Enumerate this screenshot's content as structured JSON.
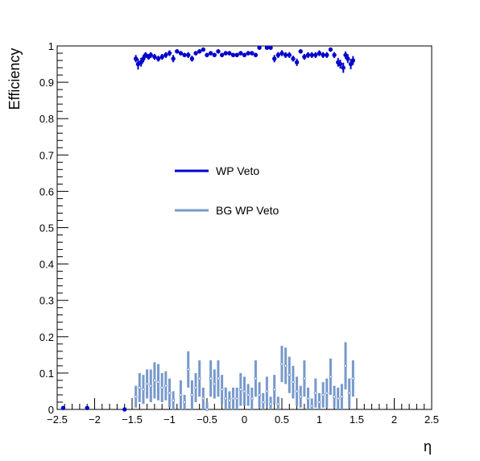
{
  "chart_data": {
    "type": "scatter",
    "xlabel": "η",
    "ylabel": "Efficiency",
    "xlim": [
      -2.5,
      2.5
    ],
    "ylim": [
      0,
      1
    ],
    "grid": false,
    "legend_position": "center",
    "x_ticks": [
      "−2.5",
      "−2",
      "−1.5",
      "−1",
      "−0.5",
      "0",
      "0.5",
      "1",
      "1.5",
      "2",
      "2.5"
    ],
    "y_ticks": [
      "0",
      "0.1",
      "0.2",
      "0.3",
      "0.4",
      "0.5",
      "0.6",
      "0.7",
      "0.8",
      "0.9",
      "1"
    ],
    "series": [
      {
        "name": "WP Veto",
        "color": "#0000cc",
        "points": [
          {
            "x": -2.42,
            "y": 0.004,
            "err": 0.0
          },
          {
            "x": -2.1,
            "y": 0.004,
            "err": 0.0
          },
          {
            "x": -1.6,
            "y": 0.0,
            "err": 0.0
          },
          {
            "x": -1.45,
            "y": 0.965,
            "err": 0.01
          },
          {
            "x": -1.42,
            "y": 0.95,
            "err": 0.015
          },
          {
            "x": -1.38,
            "y": 0.955,
            "err": 0.012
          },
          {
            "x": -1.35,
            "y": 0.965,
            "err": 0.01
          },
          {
            "x": -1.32,
            "y": 0.975,
            "err": 0.008
          },
          {
            "x": -1.28,
            "y": 0.97,
            "err": 0.008
          },
          {
            "x": -1.25,
            "y": 0.975,
            "err": 0.008
          },
          {
            "x": -1.2,
            "y": 0.97,
            "err": 0.008
          },
          {
            "x": -1.15,
            "y": 0.965,
            "err": 0.008
          },
          {
            "x": -1.1,
            "y": 0.97,
            "err": 0.008
          },
          {
            "x": -1.05,
            "y": 0.975,
            "err": 0.008
          },
          {
            "x": -1.0,
            "y": 0.98,
            "err": 0.008
          },
          {
            "x": -0.95,
            "y": 0.965,
            "err": 0.01
          },
          {
            "x": -0.9,
            "y": 0.985,
            "err": 0.006
          },
          {
            "x": -0.85,
            "y": 0.98,
            "err": 0.006
          },
          {
            "x": -0.8,
            "y": 0.975,
            "err": 0.006
          },
          {
            "x": -0.75,
            "y": 0.975,
            "err": 0.008
          },
          {
            "x": -0.7,
            "y": 0.965,
            "err": 0.008
          },
          {
            "x": -0.65,
            "y": 0.98,
            "err": 0.006
          },
          {
            "x": -0.6,
            "y": 0.985,
            "err": 0.006
          },
          {
            "x": -0.55,
            "y": 0.99,
            "err": 0.005
          },
          {
            "x": -0.5,
            "y": 0.975,
            "err": 0.006
          },
          {
            "x": -0.45,
            "y": 0.98,
            "err": 0.006
          },
          {
            "x": -0.4,
            "y": 0.975,
            "err": 0.006
          },
          {
            "x": -0.35,
            "y": 0.985,
            "err": 0.006
          },
          {
            "x": -0.3,
            "y": 0.975,
            "err": 0.006
          },
          {
            "x": -0.25,
            "y": 0.98,
            "err": 0.006
          },
          {
            "x": -0.2,
            "y": 0.98,
            "err": 0.006
          },
          {
            "x": -0.15,
            "y": 0.975,
            "err": 0.006
          },
          {
            "x": -0.1,
            "y": 0.975,
            "err": 0.006
          },
          {
            "x": -0.05,
            "y": 0.98,
            "err": 0.006
          },
          {
            "x": 0.0,
            "y": 0.975,
            "err": 0.006
          },
          {
            "x": 0.05,
            "y": 0.98,
            "err": 0.006
          },
          {
            "x": 0.1,
            "y": 0.98,
            "err": 0.006
          },
          {
            "x": 0.15,
            "y": 0.975,
            "err": 0.006
          },
          {
            "x": 0.2,
            "y": 0.995,
            "err": 0.004
          },
          {
            "x": 0.3,
            "y": 0.995,
            "err": 0.004
          },
          {
            "x": 0.35,
            "y": 0.995,
            "err": 0.004
          },
          {
            "x": 0.4,
            "y": 0.965,
            "err": 0.01
          },
          {
            "x": 0.45,
            "y": 0.975,
            "err": 0.008
          },
          {
            "x": 0.5,
            "y": 0.98,
            "err": 0.008
          },
          {
            "x": 0.55,
            "y": 0.975,
            "err": 0.008
          },
          {
            "x": 0.6,
            "y": 0.975,
            "err": 0.008
          },
          {
            "x": 0.65,
            "y": 0.965,
            "err": 0.008
          },
          {
            "x": 0.7,
            "y": 0.955,
            "err": 0.01
          },
          {
            "x": 0.75,
            "y": 0.985,
            "err": 0.006
          },
          {
            "x": 0.8,
            "y": 0.97,
            "err": 0.008
          },
          {
            "x": 0.85,
            "y": 0.975,
            "err": 0.008
          },
          {
            "x": 0.9,
            "y": 0.975,
            "err": 0.008
          },
          {
            "x": 0.95,
            "y": 0.975,
            "err": 0.008
          },
          {
            "x": 1.0,
            "y": 0.98,
            "err": 0.008
          },
          {
            "x": 1.05,
            "y": 0.975,
            "err": 0.008
          },
          {
            "x": 1.1,
            "y": 0.975,
            "err": 0.008
          },
          {
            "x": 1.15,
            "y": 0.99,
            "err": 0.005
          },
          {
            "x": 1.2,
            "y": 0.975,
            "err": 0.008
          },
          {
            "x": 1.25,
            "y": 0.955,
            "err": 0.012
          },
          {
            "x": 1.28,
            "y": 0.95,
            "err": 0.012
          },
          {
            "x": 1.32,
            "y": 0.94,
            "err": 0.014
          },
          {
            "x": 1.35,
            "y": 0.975,
            "err": 0.01
          },
          {
            "x": 1.38,
            "y": 0.965,
            "err": 0.012
          },
          {
            "x": 1.42,
            "y": 0.95,
            "err": 0.014
          },
          {
            "x": 1.45,
            "y": 0.96,
            "err": 0.012
          }
        ]
      },
      {
        "name": "BG WP Veto",
        "color": "#7799cc",
        "points": [
          {
            "x": -1.45,
            "y": 0.035,
            "err": 0.03
          },
          {
            "x": -1.4,
            "y": 0.06,
            "err": 0.04
          },
          {
            "x": -1.35,
            "y": 0.055,
            "err": 0.04
          },
          {
            "x": -1.3,
            "y": 0.07,
            "err": 0.04
          },
          {
            "x": -1.25,
            "y": 0.065,
            "err": 0.045
          },
          {
            "x": -1.2,
            "y": 0.08,
            "err": 0.05
          },
          {
            "x": -1.15,
            "y": 0.075,
            "err": 0.05
          },
          {
            "x": -1.1,
            "y": 0.06,
            "err": 0.04
          },
          {
            "x": -1.05,
            "y": 0.065,
            "err": 0.04
          },
          {
            "x": -1.0,
            "y": 0.045,
            "err": 0.04
          },
          {
            "x": -0.95,
            "y": 0.025,
            "err": 0.025
          },
          {
            "x": -0.85,
            "y": 0.04,
            "err": 0.04
          },
          {
            "x": -0.8,
            "y": 0.02,
            "err": 0.02
          },
          {
            "x": -0.75,
            "y": 0.11,
            "err": 0.05
          },
          {
            "x": -0.7,
            "y": 0.04,
            "err": 0.04
          },
          {
            "x": -0.65,
            "y": 0.06,
            "err": 0.04
          },
          {
            "x": -0.6,
            "y": 0.085,
            "err": 0.05
          },
          {
            "x": -0.55,
            "y": 0.03,
            "err": 0.03
          },
          {
            "x": -0.5,
            "y": 0.0,
            "err": 0.02
          },
          {
            "x": -0.45,
            "y": 0.085,
            "err": 0.05
          },
          {
            "x": -0.4,
            "y": 0.07,
            "err": 0.04
          },
          {
            "x": -0.35,
            "y": 0.085,
            "err": 0.05
          },
          {
            "x": -0.3,
            "y": 0.055,
            "err": 0.04
          },
          {
            "x": -0.25,
            "y": 0.03,
            "err": 0.03
          },
          {
            "x": -0.2,
            "y": 0.025,
            "err": 0.025
          },
          {
            "x": -0.15,
            "y": 0.03,
            "err": 0.03
          },
          {
            "x": -0.1,
            "y": 0.03,
            "err": 0.03
          },
          {
            "x": -0.05,
            "y": 0.055,
            "err": 0.045
          },
          {
            "x": 0.0,
            "y": 0.05,
            "err": 0.04
          },
          {
            "x": 0.05,
            "y": 0.04,
            "err": 0.03
          },
          {
            "x": 0.1,
            "y": 0.03,
            "err": 0.03
          },
          {
            "x": 0.15,
            "y": 0.085,
            "err": 0.05
          },
          {
            "x": 0.2,
            "y": 0.04,
            "err": 0.035
          },
          {
            "x": 0.25,
            "y": 0.02,
            "err": 0.025
          },
          {
            "x": 0.3,
            "y": 0.05,
            "err": 0.04
          },
          {
            "x": 0.35,
            "y": 0.015,
            "err": 0.02
          },
          {
            "x": 0.4,
            "y": 0.055,
            "err": 0.04
          },
          {
            "x": 0.45,
            "y": 0.015,
            "err": 0.02
          },
          {
            "x": 0.5,
            "y": 0.125,
            "err": 0.05
          },
          {
            "x": 0.55,
            "y": 0.12,
            "err": 0.05
          },
          {
            "x": 0.6,
            "y": 0.095,
            "err": 0.05
          },
          {
            "x": 0.65,
            "y": 0.075,
            "err": 0.045
          },
          {
            "x": 0.7,
            "y": 0.05,
            "err": 0.04
          },
          {
            "x": 0.75,
            "y": 0.035,
            "err": 0.03
          },
          {
            "x": 0.8,
            "y": 0.085,
            "err": 0.05
          },
          {
            "x": 0.85,
            "y": 0.03,
            "err": 0.03
          },
          {
            "x": 0.9,
            "y": 0.01,
            "err": 0.02
          },
          {
            "x": 0.95,
            "y": 0.045,
            "err": 0.04
          },
          {
            "x": 1.0,
            "y": 0.02,
            "err": 0.025
          },
          {
            "x": 1.05,
            "y": 0.04,
            "err": 0.035
          },
          {
            "x": 1.1,
            "y": 0.045,
            "err": 0.04
          },
          {
            "x": 1.15,
            "y": 0.09,
            "err": 0.05
          },
          {
            "x": 1.2,
            "y": 0.035,
            "err": 0.03
          },
          {
            "x": 1.25,
            "y": 0.03,
            "err": 0.03
          },
          {
            "x": 1.3,
            "y": 0.035,
            "err": 0.035
          },
          {
            "x": 1.35,
            "y": 0.12,
            "err": 0.065
          },
          {
            "x": 1.4,
            "y": 0.045,
            "err": 0.04
          },
          {
            "x": 1.45,
            "y": 0.085,
            "err": 0.05
          }
        ]
      }
    ]
  }
}
